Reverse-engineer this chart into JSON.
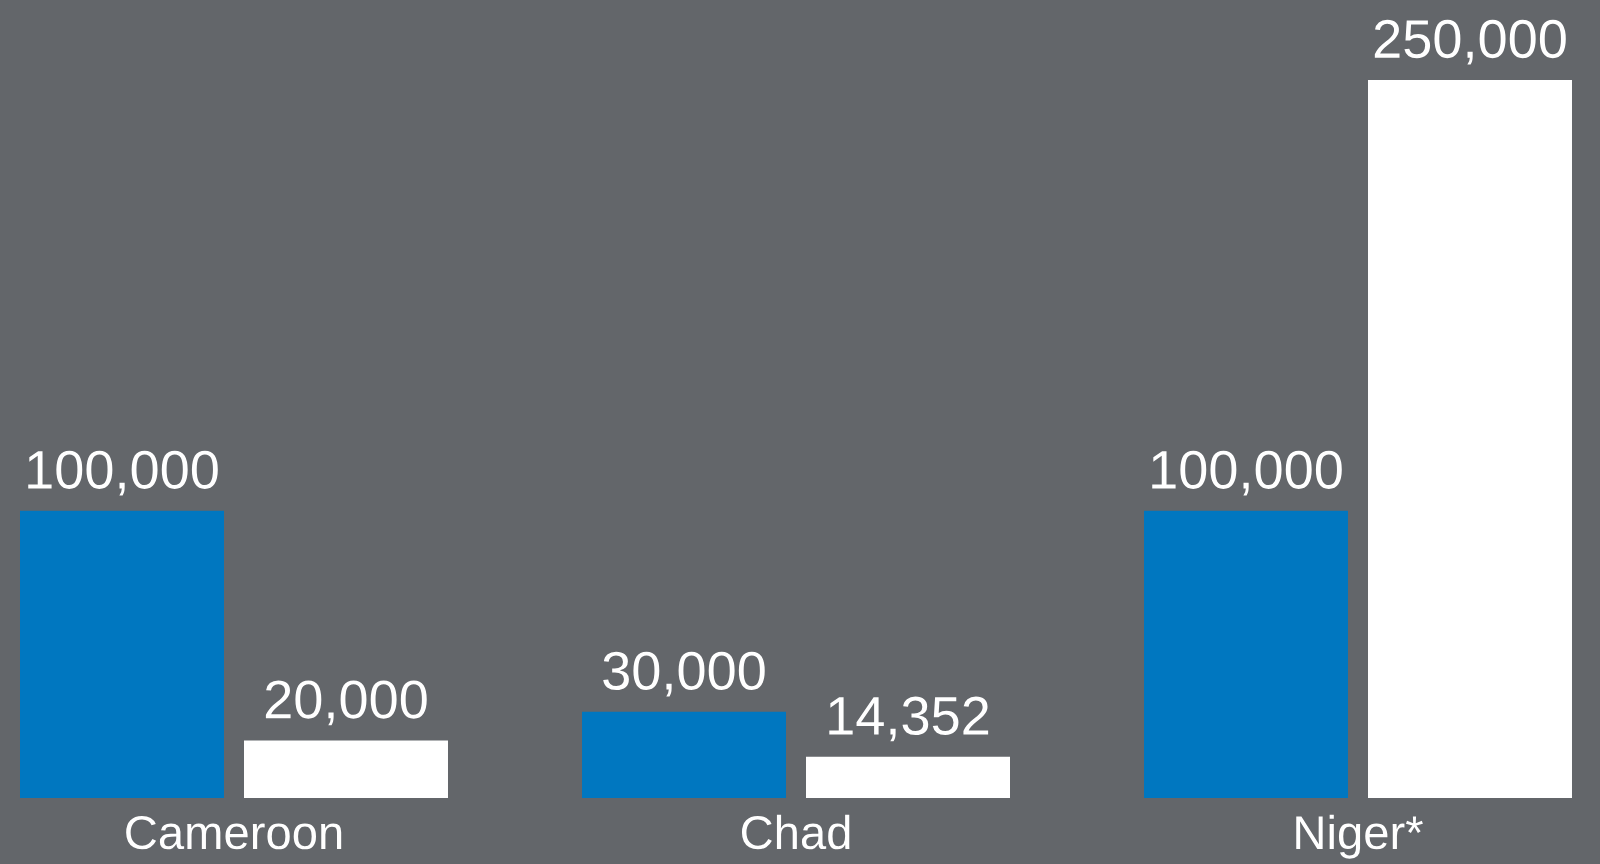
{
  "chart_data": {
    "type": "bar",
    "categories": [
      "Cameroon",
      "Chad",
      "Niger*"
    ],
    "series": [
      {
        "color": "#0077c0",
        "values": [
          100000,
          30000,
          100000
        ],
        "value_labels": [
          "100,000",
          "30,000",
          "100,000"
        ]
      },
      {
        "color": "#ffffff",
        "values": [
          20000,
          14352,
          250000
        ],
        "value_labels": [
          "20,000",
          "14,352",
          "250,000"
        ]
      }
    ],
    "grid": false,
    "legend": false
  }
}
